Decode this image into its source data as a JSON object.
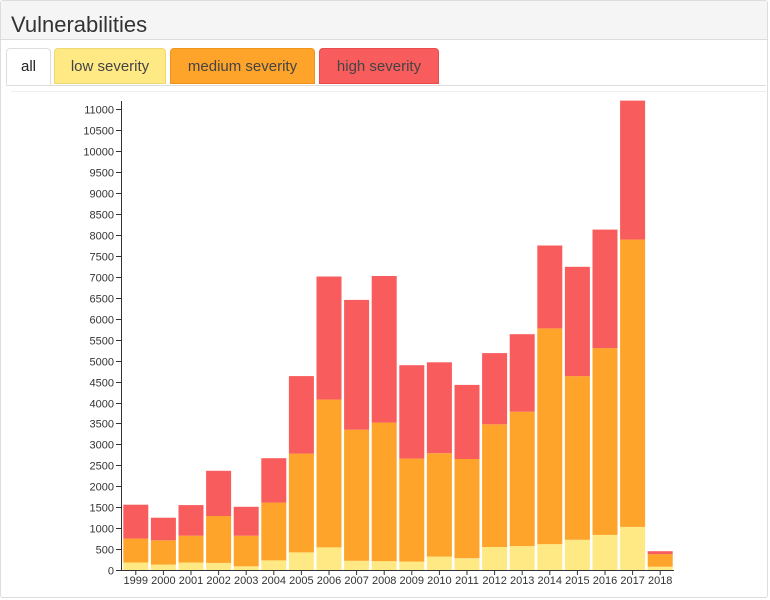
{
  "panel": {
    "title": "Vulnerabilities"
  },
  "tabs": [
    {
      "label": "all",
      "active": true
    },
    {
      "label": "low severity",
      "color": "#ffe985"
    },
    {
      "label": "medium severity",
      "color": "#ffa42a"
    },
    {
      "label": "high severity",
      "color": "#f95c5c"
    }
  ],
  "chart_data": {
    "type": "bar",
    "stacked": true,
    "title": "",
    "xlabel": "",
    "ylabel": "",
    "ylim": [
      0,
      11200
    ],
    "ytick_step": 500,
    "categories": [
      "1999",
      "2000",
      "2001",
      "2002",
      "2003",
      "2004",
      "2005",
      "2006",
      "2007",
      "2008",
      "2009",
      "2010",
      "2011",
      "2012",
      "2013",
      "2014",
      "2015",
      "2016",
      "2017",
      "2018"
    ],
    "series": [
      {
        "name": "low severity",
        "color": "#ffe985",
        "values": [
          180,
          130,
          180,
          170,
          90,
          230,
          420,
          540,
          220,
          210,
          200,
          320,
          280,
          550,
          570,
          620,
          720,
          840,
          1030,
          80
        ]
      },
      {
        "name": "medium severity",
        "color": "#ffa42a",
        "values": [
          570,
          580,
          640,
          1120,
          730,
          1380,
          2360,
          3530,
          3130,
          3310,
          2460,
          2470,
          2370,
          2930,
          3210,
          5150,
          3910,
          4460,
          6860,
          300
        ]
      },
      {
        "name": "high severity",
        "color": "#f95c5c",
        "values": [
          810,
          540,
          730,
          1080,
          690,
          1060,
          1850,
          2940,
          3100,
          3500,
          2230,
          2170,
          1770,
          1700,
          1850,
          1980,
          2610,
          2830,
          3320,
          70
        ]
      }
    ]
  }
}
